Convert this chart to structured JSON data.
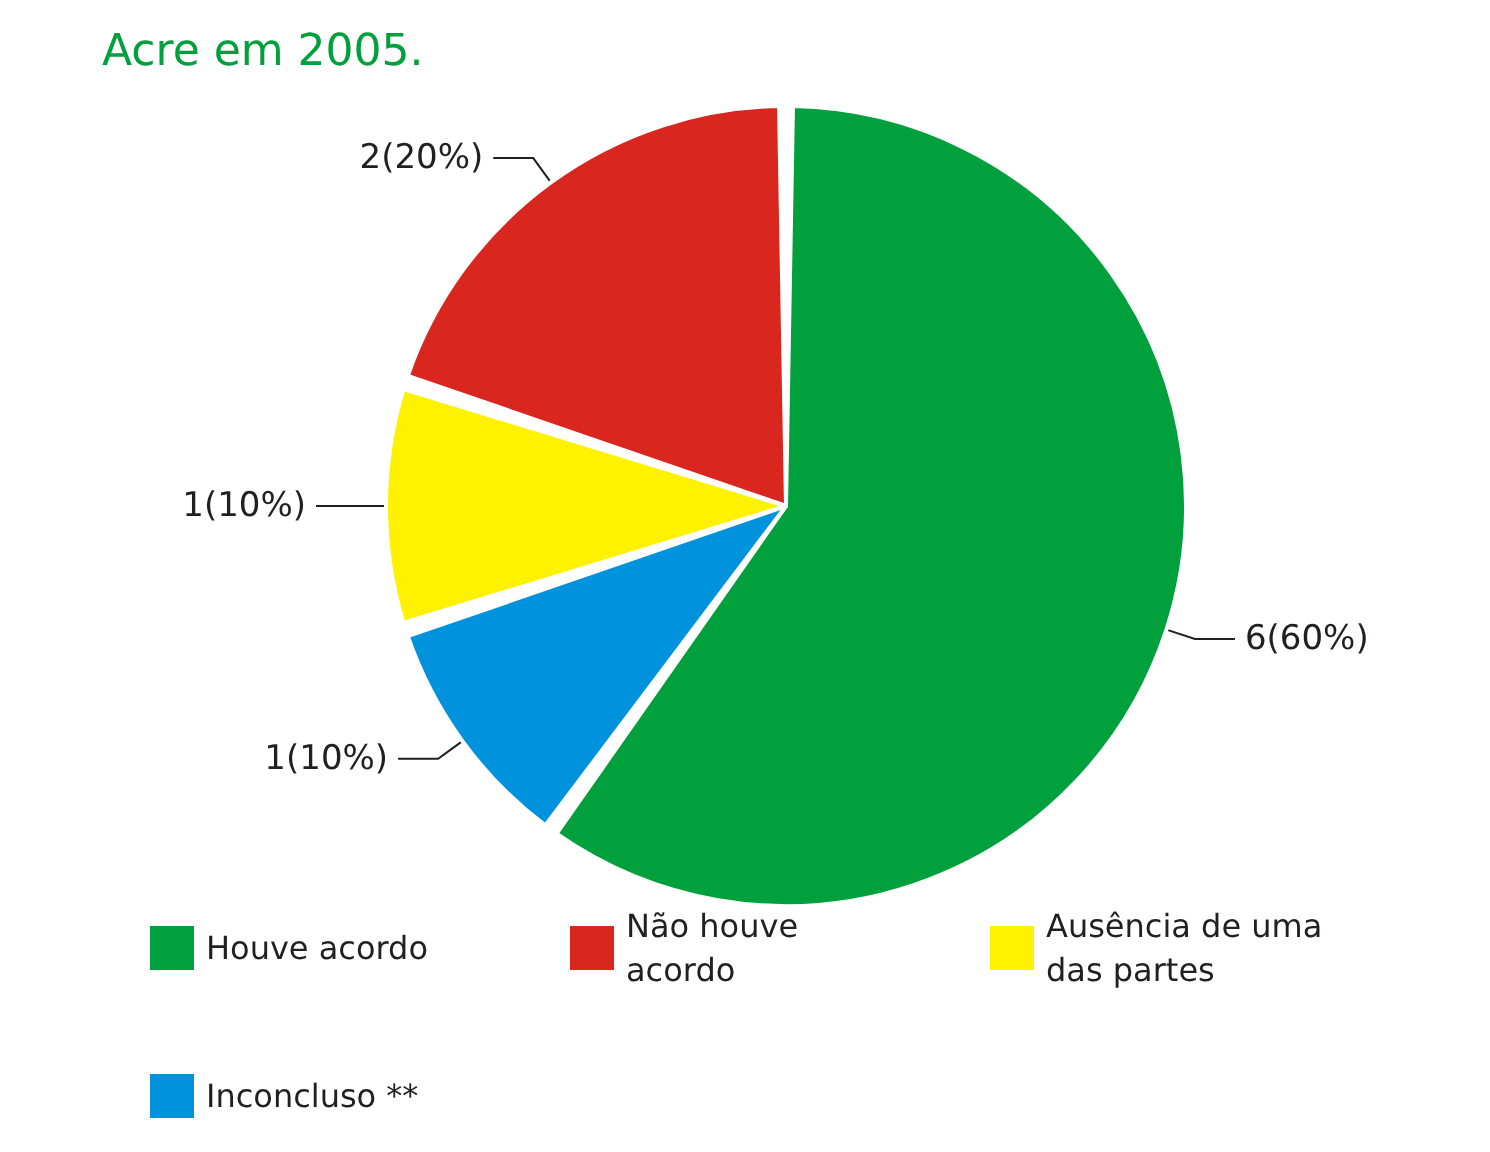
{
  "chart_data": {
    "type": "pie",
    "title": "Acre em 2005.",
    "categories": [
      "Houve acordo",
      "Não houve acordo",
      "Ausência de uma das partes",
      "Inconcluso **"
    ],
    "values": [
      6,
      2,
      1,
      1
    ],
    "colors": [
      "#00a03c",
      "#d9261e",
      "#fff200",
      "#0092dc"
    ],
    "value_labels": [
      "6(60%)",
      "2(20%)",
      "1(10%)",
      "1(10%)"
    ],
    "legend": "bottom"
  }
}
